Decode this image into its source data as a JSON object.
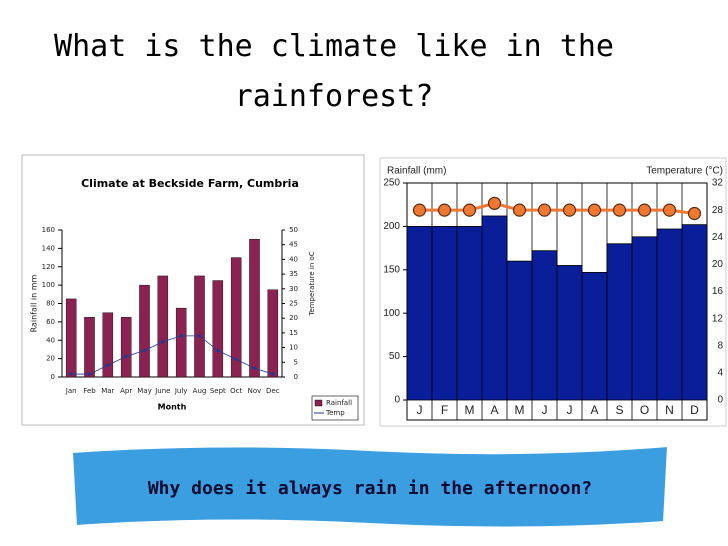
{
  "slide": {
    "title": "What is the climate like in the rainforest?",
    "question": "Why does it always rain in the afternoon?"
  },
  "chart_data": [
    {
      "type": "bar",
      "title": "Climate at Beckside Farm, Cumbria",
      "x_label": "Month",
      "y_label": "Rainfall in mm",
      "y2_label": "Temperature in oC",
      "categories": [
        "Jan",
        "Feb",
        "Mar",
        "Apr",
        "May",
        "June",
        "July",
        "Aug",
        "Sept",
        "Oct",
        "Nov",
        "Dec"
      ],
      "series": [
        {
          "name": "Rainfall",
          "type": "bar",
          "color": "#8b2252",
          "values": [
            85,
            65,
            70,
            65,
            100,
            110,
            75,
            110,
            105,
            130,
            150,
            95
          ]
        },
        {
          "name": "Temp",
          "type": "line",
          "axis": "y2",
          "color": "#1f3a93",
          "values": [
            1,
            1,
            4,
            7,
            9,
            12,
            14,
            14,
            9,
            6,
            3,
            1
          ]
        }
      ],
      "ylim": [
        0,
        160
      ],
      "yticks": [
        0,
        20,
        40,
        60,
        80,
        100,
        120,
        140,
        160
      ],
      "y2lim": [
        0,
        50
      ],
      "y2ticks": [
        0,
        5,
        10,
        15,
        20,
        25,
        30,
        35,
        40,
        45,
        50
      ],
      "legend": "bottom-right"
    },
    {
      "type": "bar",
      "y_label": "Rainfall (mm)",
      "y2_label": "Temperature (°C)",
      "categories": [
        "J",
        "F",
        "M",
        "A",
        "M",
        "J",
        "J",
        "A",
        "S",
        "O",
        "N",
        "D"
      ],
      "series": [
        {
          "type": "bar",
          "color": "#0a1e9a",
          "values": [
            200,
            200,
            200,
            212,
            160,
            172,
            155,
            147,
            180,
            188,
            197,
            202
          ]
        },
        {
          "type": "line",
          "axis": "y2",
          "color": "#f07830",
          "values": [
            28,
            28,
            28,
            29,
            28,
            28,
            28,
            28,
            28,
            28,
            28,
            27.5
          ]
        }
      ],
      "ylim": [
        0,
        250
      ],
      "yticks": [
        0,
        50,
        100,
        150,
        200,
        250
      ],
      "y2lim": [
        0,
        32
      ],
      "y2ticks": [
        0,
        4,
        8,
        12,
        16,
        20,
        24,
        28,
        32
      ]
    }
  ]
}
